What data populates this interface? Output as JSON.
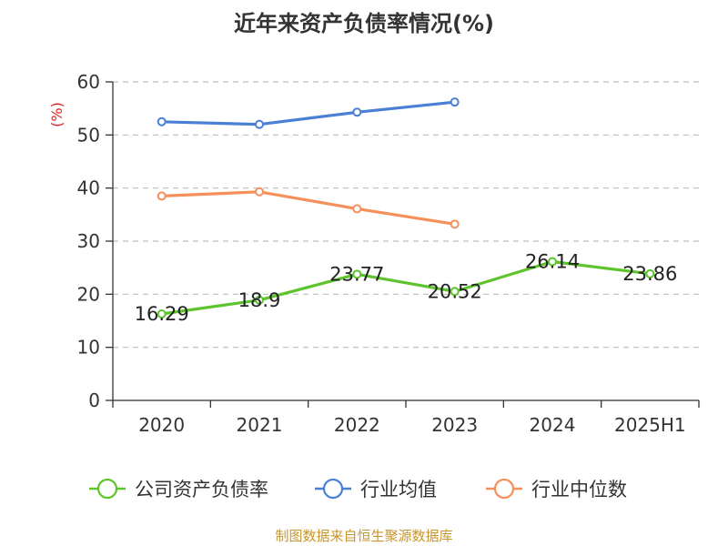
{
  "chart_data": {
    "type": "line",
    "title": "近年来资产负债率情况(%)",
    "ylabel": "(%)",
    "xlabel": "",
    "categories": [
      "2020",
      "2021",
      "2022",
      "2023",
      "2024",
      "2025H1"
    ],
    "ylim": [
      0,
      60
    ],
    "yticks": [
      0,
      10,
      20,
      30,
      40,
      50,
      60
    ],
    "grid": true,
    "legend_position": "bottom",
    "series": [
      {
        "name": "公司资产负债率",
        "color": "#5ec42d",
        "values": [
          16.29,
          18.9,
          23.77,
          20.52,
          26.14,
          23.86
        ],
        "labels": [
          "16.29",
          "18.9",
          "23.77",
          "20.52",
          "26.14",
          "23.86"
        ]
      },
      {
        "name": "行业均值",
        "color": "#4a7fd6",
        "values": [
          52.5,
          52.0,
          54.3,
          56.2,
          null,
          null
        ]
      },
      {
        "name": "行业中位数",
        "color": "#f5905a",
        "values": [
          38.5,
          39.3,
          36.1,
          33.2,
          null,
          null
        ]
      }
    ]
  },
  "footer": {
    "source": "制图数据来自恒生聚源数据库"
  }
}
